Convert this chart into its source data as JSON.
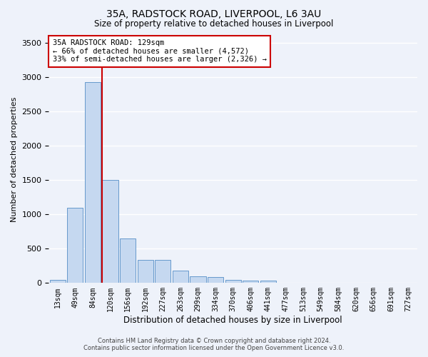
{
  "title1": "35A, RADSTOCK ROAD, LIVERPOOL, L6 3AU",
  "title2": "Size of property relative to detached houses in Liverpool",
  "xlabel": "Distribution of detached houses by size in Liverpool",
  "ylabel": "Number of detached properties",
  "bar_labels": [
    "13sqm",
    "49sqm",
    "84sqm",
    "120sqm",
    "156sqm",
    "192sqm",
    "227sqm",
    "263sqm",
    "299sqm",
    "334sqm",
    "370sqm",
    "406sqm",
    "441sqm",
    "477sqm",
    "513sqm",
    "549sqm",
    "584sqm",
    "620sqm",
    "656sqm",
    "691sqm",
    "727sqm"
  ],
  "bar_values": [
    50,
    1100,
    2920,
    1500,
    650,
    340,
    340,
    185,
    100,
    90,
    50,
    35,
    30,
    5,
    5,
    3,
    2,
    0,
    0,
    0,
    0
  ],
  "bar_color": "#c5d8f0",
  "bar_edgecolor": "#6699cc",
  "vline_color": "#cc0000",
  "annotation_box_color": "#cc0000",
  "property_line_label": "35A RADSTOCK ROAD: 129sqm",
  "annotation_line1": "← 66% of detached houses are smaller (4,572)",
  "annotation_line2": "33% of semi-detached houses are larger (2,326) →",
  "ylim": [
    0,
    3600
  ],
  "background_color": "#eef2fa",
  "grid_color": "#ffffff",
  "footer1": "Contains HM Land Registry data © Crown copyright and database right 2024.",
  "footer2": "Contains public sector information licensed under the Open Government Licence v3.0."
}
